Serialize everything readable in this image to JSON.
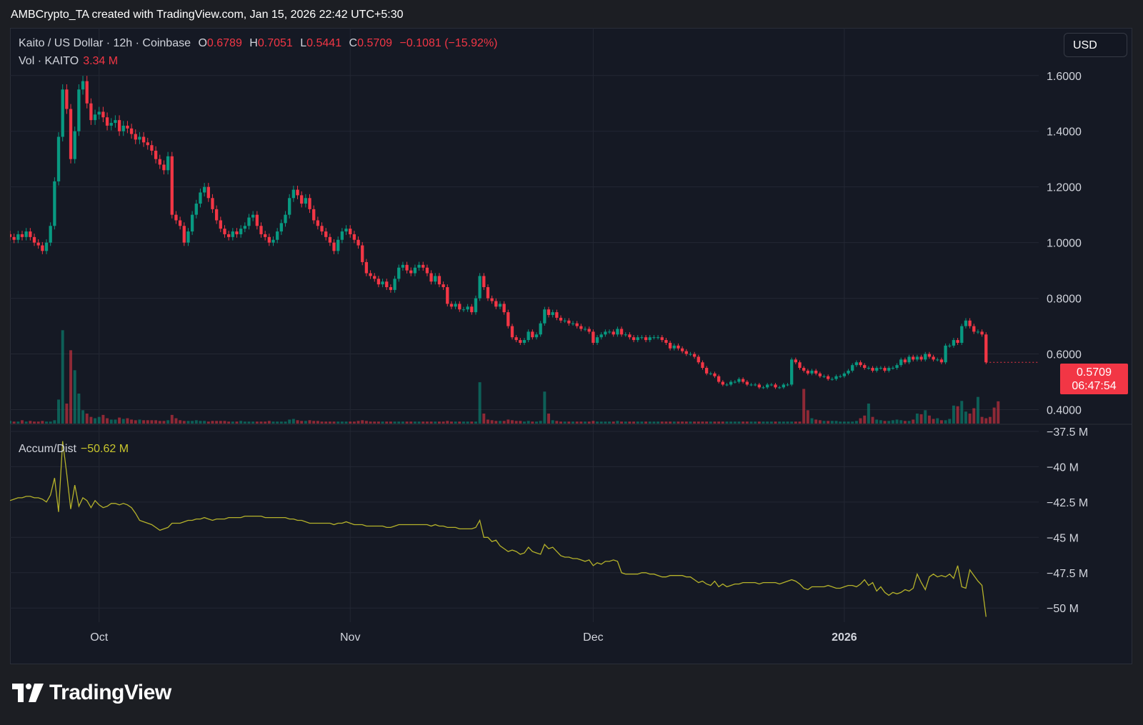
{
  "attribution": "AMBCrypto_TA created with TradingView.com, Jan 15, 2026 22:42 UTC+5:30",
  "legend": {
    "pair": "Kaito / US Dollar · 12h · Coinbase",
    "o_label": "O",
    "o_value": "0.6789",
    "h_label": "H",
    "h_value": "0.7051",
    "l_label": "L",
    "l_value": "0.5441",
    "c_label": "C",
    "c_value": "0.5709",
    "change": "−0.1081 (−15.92%)",
    "vol_label": "Vol · KAITO",
    "vol_value": "3.34 M",
    "ad_label": "Accum/Dist",
    "ad_value": "−50.62 M"
  },
  "currency_button": "USD",
  "price_tag": {
    "price": "0.5709",
    "countdown": "06:47:54"
  },
  "brand": "TradingView",
  "colors": {
    "up": "#089981",
    "down": "#f23645",
    "ad_line": "#b5b22a",
    "grid": "#232733"
  },
  "chart_data": [
    {
      "type": "candlestick",
      "price_ticks": [
        "1.6000",
        "1.4000",
        "1.2000",
        "1.0000",
        "0.8000",
        "0.6000",
        "0.4000"
      ],
      "price_tick_values": [
        1.6,
        1.4,
        1.2,
        1.0,
        0.8,
        0.6,
        0.4
      ],
      "ylim": [
        0.35,
        1.72
      ],
      "x_ticks": [
        {
          "label": "Oct",
          "index": 22
        },
        {
          "label": "Nov",
          "index": 84
        },
        {
          "label": "Dec",
          "index": 144
        },
        {
          "label": "2026",
          "index": 206
        }
      ],
      "x_range": [
        0,
        254
      ],
      "closes": [
        1.02,
        1.01,
        1.03,
        1.02,
        1.04,
        1.02,
        1.0,
        0.99,
        0.97,
        1.0,
        1.06,
        1.22,
        1.38,
        1.55,
        1.48,
        1.3,
        1.4,
        1.55,
        1.58,
        1.5,
        1.44,
        1.46,
        1.47,
        1.45,
        1.42,
        1.43,
        1.44,
        1.4,
        1.42,
        1.41,
        1.39,
        1.37,
        1.38,
        1.36,
        1.35,
        1.33,
        1.3,
        1.28,
        1.26,
        1.31,
        1.1,
        1.08,
        1.06,
        1.0,
        1.04,
        1.1,
        1.14,
        1.18,
        1.2,
        1.16,
        1.12,
        1.08,
        1.05,
        1.03,
        1.02,
        1.04,
        1.03,
        1.05,
        1.06,
        1.09,
        1.1,
        1.06,
        1.03,
        1.02,
        1.0,
        1.01,
        1.04,
        1.07,
        1.1,
        1.16,
        1.19,
        1.17,
        1.14,
        1.16,
        1.12,
        1.08,
        1.06,
        1.04,
        1.02,
        1.0,
        0.97,
        1.01,
        1.04,
        1.05,
        1.03,
        1.01,
        0.99,
        0.93,
        0.89,
        0.88,
        0.87,
        0.85,
        0.86,
        0.84,
        0.83,
        0.87,
        0.91,
        0.92,
        0.9,
        0.89,
        0.91,
        0.92,
        0.91,
        0.89,
        0.86,
        0.88,
        0.85,
        0.84,
        0.78,
        0.77,
        0.78,
        0.76,
        0.76,
        0.77,
        0.75,
        0.8,
        0.88,
        0.84,
        0.8,
        0.79,
        0.77,
        0.78,
        0.75,
        0.7,
        0.66,
        0.65,
        0.64,
        0.65,
        0.68,
        0.66,
        0.67,
        0.71,
        0.76,
        0.74,
        0.75,
        0.73,
        0.72,
        0.72,
        0.71,
        0.71,
        0.7,
        0.69,
        0.69,
        0.68,
        0.64,
        0.66,
        0.67,
        0.68,
        0.68,
        0.67,
        0.69,
        0.67,
        0.67,
        0.66,
        0.65,
        0.66,
        0.66,
        0.65,
        0.66,
        0.66,
        0.66,
        0.65,
        0.64,
        0.62,
        0.63,
        0.62,
        0.61,
        0.6,
        0.6,
        0.59,
        0.57,
        0.55,
        0.53,
        0.53,
        0.52,
        0.5,
        0.49,
        0.49,
        0.5,
        0.5,
        0.51,
        0.5,
        0.49,
        0.49,
        0.49,
        0.48,
        0.48,
        0.49,
        0.49,
        0.48,
        0.48,
        0.49,
        0.49,
        0.58,
        0.57,
        0.55,
        0.54,
        0.53,
        0.54,
        0.53,
        0.52,
        0.52,
        0.51,
        0.51,
        0.52,
        0.52,
        0.53,
        0.54,
        0.56,
        0.57,
        0.56,
        0.55,
        0.55,
        0.54,
        0.55,
        0.55,
        0.54,
        0.55,
        0.55,
        0.56,
        0.58,
        0.57,
        0.59,
        0.58,
        0.59,
        0.58,
        0.6,
        0.59,
        0.58,
        0.58,
        0.57,
        0.63,
        0.63,
        0.65,
        0.64,
        0.7,
        0.72,
        0.7,
        0.68,
        0.68,
        0.67,
        0.57
      ],
      "volumes": [
        0.4,
        0.3,
        0.3,
        0.5,
        0.3,
        0.4,
        0.3,
        0.3,
        0.4,
        0.3,
        0.3,
        0.5,
        3.6,
        14.0,
        3.0,
        11.0,
        8.0,
        4.5,
        2.0,
        1.5,
        1.0,
        0.8,
        1.0,
        1.3,
        0.8,
        0.6,
        0.6,
        0.9,
        0.7,
        0.8,
        0.6,
        0.5,
        0.6,
        0.5,
        0.5,
        0.5,
        0.5,
        0.4,
        0.4,
        0.5,
        1.3,
        0.8,
        0.5,
        0.4,
        0.4,
        0.4,
        0.5,
        0.4,
        0.4,
        0.3,
        0.4,
        0.4,
        0.4,
        0.4,
        0.3,
        0.3,
        0.3,
        0.4,
        0.3,
        0.3,
        0.3,
        0.3,
        0.3,
        0.3,
        0.4,
        0.3,
        0.3,
        0.3,
        0.3,
        0.6,
        0.7,
        0.5,
        0.4,
        0.4,
        0.5,
        0.4,
        0.4,
        0.3,
        0.3,
        0.3,
        0.3,
        0.3,
        0.3,
        0.3,
        0.3,
        0.3,
        0.4,
        0.5,
        0.4,
        0.3,
        0.3,
        0.3,
        0.3,
        0.3,
        0.3,
        0.3,
        0.3,
        0.3,
        0.3,
        0.3,
        0.3,
        0.3,
        0.3,
        0.3,
        0.3,
        0.3,
        0.3,
        0.3,
        0.4,
        0.3,
        0.3,
        0.3,
        0.3,
        0.3,
        0.3,
        0.3,
        6.2,
        1.5,
        0.6,
        0.5,
        0.4,
        0.4,
        0.4,
        0.6,
        0.5,
        0.4,
        0.4,
        0.3,
        0.4,
        0.3,
        0.3,
        0.4,
        4.8,
        1.5,
        0.5,
        0.4,
        0.3,
        0.3,
        0.3,
        0.3,
        0.3,
        0.3,
        0.3,
        0.3,
        0.4,
        0.3,
        0.3,
        0.3,
        0.3,
        0.3,
        0.4,
        0.3,
        0.3,
        0.3,
        0.3,
        0.3,
        0.3,
        0.3,
        0.3,
        0.3,
        0.3,
        0.3,
        0.3,
        0.3,
        0.3,
        0.3,
        0.3,
        0.3,
        0.3,
        0.3,
        0.3,
        0.3,
        0.3,
        0.3,
        0.3,
        0.3,
        0.3,
        0.3,
        0.3,
        0.3,
        0.3,
        0.3,
        0.3,
        0.3,
        0.3,
        0.3,
        0.3,
        0.3,
        0.3,
        0.3,
        0.3,
        0.3,
        0.3,
        0.3,
        0.3,
        0.3,
        5.2,
        2.0,
        0.8,
        0.6,
        0.5,
        0.4,
        0.4,
        0.4,
        0.4,
        0.3,
        0.3,
        0.3,
        0.3,
        0.4,
        0.8,
        1.2,
        3.0,
        1.0,
        0.6,
        0.5,
        0.4,
        0.4,
        0.5,
        0.6,
        0.5,
        0.4,
        0.4,
        0.6,
        1.5,
        1.4,
        2.0,
        1.2,
        0.7,
        0.8,
        0.5,
        0.5,
        0.7,
        2.7,
        2.6,
        3.4,
        1.8,
        1.5,
        2.3,
        4.0,
        1.0,
        0.8,
        1.0,
        2.4,
        3.34
      ],
      "volume_max": 15.0
    },
    {
      "type": "line",
      "name": "Accum/Dist",
      "ticks": [
        "−37.5 M",
        "−40 M",
        "−42.5 M",
        "−45 M",
        "−47.5 M",
        "−50 M"
      ],
      "tick_values": [
        -37.5,
        -40.0,
        -42.5,
        -45.0,
        -47.5,
        -50.0
      ],
      "ylim": [
        -51.0,
        -37.0
      ],
      "values": [
        -42.4,
        -42.3,
        -42.2,
        -42.2,
        -42.1,
        -42.1,
        -42.2,
        -42.2,
        -42.3,
        -42.5,
        -42.0,
        -40.8,
        -43.2,
        -38.2,
        -40.5,
        -43.0,
        -41.3,
        -42.8,
        -42.2,
        -42.4,
        -42.9,
        -42.4,
        -42.7,
        -42.9,
        -42.8,
        -42.6,
        -42.6,
        -42.7,
        -42.6,
        -42.7,
        -42.9,
        -43.3,
        -43.8,
        -43.9,
        -44.0,
        -44.1,
        -44.3,
        -44.5,
        -44.4,
        -44.3,
        -44.0,
        -44.0,
        -44.0,
        -43.9,
        -43.8,
        -43.8,
        -43.7,
        -43.7,
        -43.6,
        -43.7,
        -43.8,
        -43.7,
        -43.7,
        -43.7,
        -43.6,
        -43.6,
        -43.6,
        -43.6,
        -43.5,
        -43.5,
        -43.5,
        -43.5,
        -43.5,
        -43.6,
        -43.6,
        -43.6,
        -43.6,
        -43.6,
        -43.6,
        -43.7,
        -43.7,
        -43.8,
        -43.8,
        -43.9,
        -44.0,
        -44.0,
        -44.0,
        -44.0,
        -44.0,
        -44.0,
        -44.1,
        -44.0,
        -44.0,
        -43.9,
        -44.0,
        -44.1,
        -44.1,
        -44.1,
        -44.2,
        -44.2,
        -44.2,
        -44.2,
        -44.2,
        -44.3,
        -44.3,
        -44.2,
        -44.1,
        -44.1,
        -44.1,
        -44.1,
        -44.1,
        -44.1,
        -44.1,
        -44.1,
        -44.2,
        -44.1,
        -44.2,
        -44.2,
        -44.3,
        -44.3,
        -44.3,
        -44.4,
        -44.4,
        -44.4,
        -44.4,
        -44.3,
        -43.8,
        -45.0,
        -45.0,
        -45.3,
        -45.2,
        -45.6,
        -45.8,
        -46.0,
        -45.9,
        -46.0,
        -46.2,
        -46.1,
        -45.7,
        -46.0,
        -46.1,
        -46.2,
        -45.5,
        -45.8,
        -45.7,
        -46.0,
        -46.3,
        -46.4,
        -46.4,
        -46.5,
        -46.5,
        -46.6,
        -46.7,
        -46.6,
        -47.0,
        -46.8,
        -46.9,
        -46.7,
        -46.7,
        -46.6,
        -46.7,
        -47.5,
        -47.6,
        -47.6,
        -47.6,
        -47.6,
        -47.5,
        -47.5,
        -47.6,
        -47.6,
        -47.7,
        -47.8,
        -47.8,
        -47.7,
        -47.7,
        -47.7,
        -47.7,
        -47.8,
        -47.8,
        -48.0,
        -48.2,
        -48.1,
        -48.3,
        -48.4,
        -48.1,
        -48.5,
        -48.3,
        -48.5,
        -48.4,
        -48.3,
        -48.3,
        -48.2,
        -48.2,
        -48.2,
        -48.2,
        -48.3,
        -48.2,
        -48.2,
        -48.2,
        -48.2,
        -48.3,
        -48.2,
        -48.1,
        -48.0,
        -48.1,
        -48.3,
        -48.6,
        -48.7,
        -48.5,
        -48.5,
        -48.5,
        -48.5,
        -48.4,
        -48.5,
        -48.6,
        -48.6,
        -48.5,
        -48.4,
        -48.4,
        -48.5,
        -48.3,
        -48.0,
        -48.4,
        -48.2,
        -48.8,
        -48.5,
        -48.9,
        -49.1,
        -48.9,
        -49.0,
        -48.9,
        -48.7,
        -48.8,
        -48.6,
        -47.6,
        -48.2,
        -48.7,
        -47.8,
        -47.6,
        -47.8,
        -47.7,
        -47.8,
        -47.6,
        -47.9,
        -47.0,
        -48.5,
        -48.6,
        -47.3,
        -47.7,
        -48.1,
        -48.4,
        -50.62
      ]
    }
  ]
}
